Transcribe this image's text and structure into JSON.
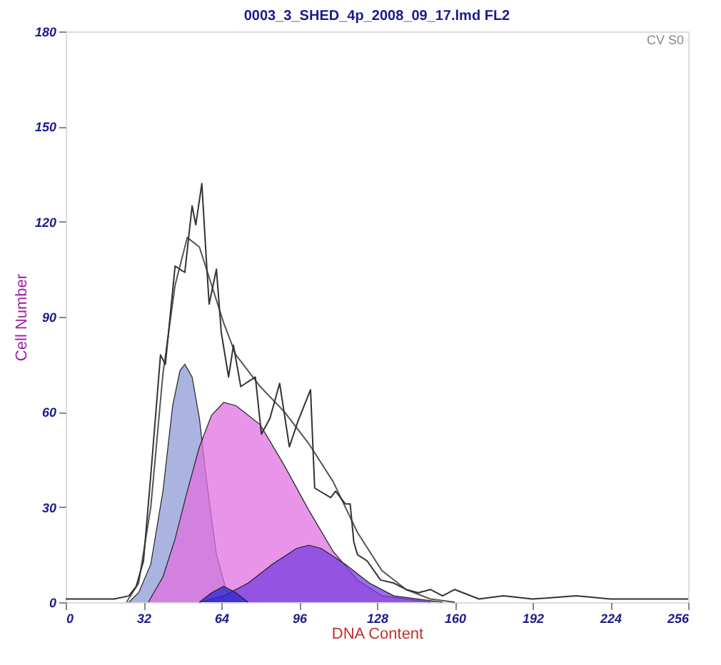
{
  "chart_data": {
    "type": "line",
    "title": "0003_3_SHED_4p_2008_09_17.lmd FL2",
    "xlabel": "DNA Content",
    "ylabel": "Cell Number",
    "annotations": [
      "CV S0"
    ],
    "xlim": [
      0,
      256
    ],
    "xticks": [
      0,
      32,
      64,
      96,
      128,
      160,
      192,
      224,
      256
    ],
    "ylim": [
      0,
      180
    ],
    "yticks": [
      0,
      30,
      60,
      90,
      120,
      150,
      180
    ],
    "grid": false,
    "series": [
      {
        "type": "area",
        "color": "#8f9bd6",
        "x": [
          26,
          30,
          35,
          40,
          44,
          47,
          49,
          52,
          55,
          58,
          62,
          66,
          70
        ],
        "values": [
          0,
          3,
          12,
          35,
          62,
          73,
          75,
          71,
          58,
          38,
          15,
          4,
          0
        ]
      },
      {
        "type": "area",
        "color": "#e070e0",
        "x": [
          34,
          40,
          45,
          50,
          55,
          60,
          65,
          70,
          80,
          90,
          100,
          110,
          120,
          130,
          140,
          150
        ],
        "values": [
          0,
          8,
          20,
          35,
          49,
          59,
          63,
          62,
          56,
          43,
          29,
          16,
          7,
          2,
          1,
          0
        ]
      },
      {
        "type": "area",
        "color": "#7a3ee0",
        "x": [
          55,
          65,
          75,
          85,
          95,
          100,
          105,
          115,
          125,
          135,
          145,
          155
        ],
        "values": [
          0,
          2,
          6,
          12,
          17,
          18,
          17,
          12,
          6,
          2,
          1,
          0
        ]
      },
      {
        "type": "area",
        "color": "#2a2ad0",
        "x": [
          55,
          60,
          65,
          70,
          75
        ],
        "values": [
          0,
          3,
          5,
          3,
          0
        ]
      },
      {
        "color": "#555555",
        "x": [
          25,
          30,
          35,
          40,
          45,
          50,
          55,
          60,
          65,
          70,
          80,
          90,
          100,
          110,
          120,
          130,
          140,
          150,
          160
        ],
        "values": [
          0,
          6,
          30,
          72,
          100,
          115,
          112,
          100,
          88,
          78,
          68,
          60,
          50,
          38,
          22,
          10,
          4,
          1,
          0
        ]
      },
      {
        "color": "#333333",
        "x": [
          0,
          10,
          20,
          26,
          29,
          32,
          35,
          39,
          41,
          45,
          49,
          52,
          53.5,
          56,
          58,
          59,
          62,
          64,
          67,
          69,
          72,
          78,
          80.5,
          84,
          88,
          92,
          95.5,
          100.7,
          102.4,
          109,
          111,
          115,
          117,
          118.5,
          120,
          124,
          129.5,
          135,
          140,
          145,
          150,
          155,
          160,
          170,
          180,
          192,
          210,
          224,
          240,
          256
        ],
        "values": [
          1,
          1,
          1,
          2,
          5,
          13,
          40,
          78,
          75,
          106,
          104,
          125,
          119,
          132,
          106,
          94,
          105,
          85,
          71,
          81,
          68,
          71,
          53,
          58,
          69,
          49,
          57,
          67,
          36,
          33,
          35,
          31,
          31,
          19,
          15,
          13,
          7,
          6,
          4,
          3,
          4,
          2,
          4,
          1,
          2,
          1,
          2,
          1,
          1,
          1
        ]
      }
    ]
  }
}
